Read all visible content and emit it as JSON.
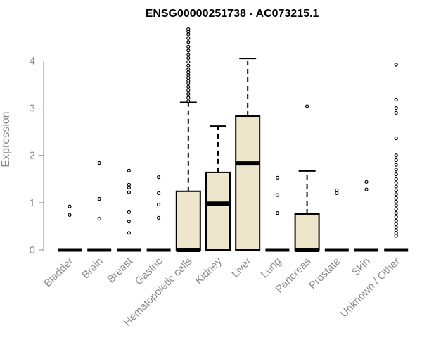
{
  "chart_data": {
    "type": "boxplot",
    "title": "ENSG00000251738 - AC073215.1",
    "xlabel": "",
    "ylabel": "Expression",
    "ylim": [
      0,
      4.7
    ],
    "yticks": [
      0,
      1,
      2,
      3,
      4
    ],
    "grid": false,
    "legend": "none",
    "box_color": "#ede6cb",
    "categories": [
      "Bladder",
      "Brain",
      "Breast",
      "Gastric",
      "Hematopoietic cells",
      "Kidney",
      "Liver",
      "Lung",
      "Pancreas",
      "Prostate",
      "Skin",
      "Unknown / Other"
    ],
    "boxes": [
      {
        "q1": 0,
        "median": 0,
        "q3": 0,
        "whisker_low": 0,
        "whisker_high": 0,
        "outliers": [
          0.74,
          0.92
        ]
      },
      {
        "q1": 0,
        "median": 0,
        "q3": 0,
        "whisker_low": 0,
        "whisker_high": 0,
        "outliers": [
          0.66,
          1.08,
          1.84
        ]
      },
      {
        "q1": 0,
        "median": 0,
        "q3": 0,
        "whisker_low": 0,
        "whisker_high": 0,
        "outliers": [
          0.36,
          0.6,
          0.8,
          1.22,
          1.32,
          1.38,
          1.68
        ]
      },
      {
        "q1": 0,
        "median": 0,
        "q3": 0,
        "whisker_low": 0,
        "whisker_high": 0,
        "outliers": [
          0.68,
          0.96,
          1.2,
          1.54
        ]
      },
      {
        "q1": 0,
        "median": 0,
        "q3": 1.24,
        "whisker_low": 0,
        "whisker_high": 3.12,
        "outliers": [
          3.15,
          3.22,
          3.3,
          3.38,
          3.45,
          3.52,
          3.58,
          3.64,
          3.7,
          3.76,
          3.82,
          3.9,
          3.98,
          4.06,
          4.14,
          4.22,
          4.3,
          4.4,
          4.48,
          4.56,
          4.62,
          4.67
        ]
      },
      {
        "q1": 0,
        "median": 0.98,
        "q3": 1.64,
        "whisker_low": 0,
        "whisker_high": 2.62,
        "outliers": []
      },
      {
        "q1": 0,
        "median": 1.83,
        "q3": 2.83,
        "whisker_low": 0,
        "whisker_high": 4.05,
        "outliers": []
      },
      {
        "q1": 0,
        "median": 0,
        "q3": 0,
        "whisker_low": 0,
        "whisker_high": 0,
        "outliers": [
          0.78,
          1.16,
          1.53
        ]
      },
      {
        "q1": 0,
        "median": 0,
        "q3": 0.76,
        "whisker_low": 0,
        "whisker_high": 1.67,
        "outliers": [
          3.04
        ]
      },
      {
        "q1": 0,
        "median": 0,
        "q3": 0,
        "whisker_low": 0,
        "whisker_high": 0,
        "outliers": [
          1.2,
          1.26
        ]
      },
      {
        "q1": 0,
        "median": 0,
        "q3": 0,
        "whisker_low": 0,
        "whisker_high": 0,
        "outliers": [
          1.28,
          1.44
        ]
      },
      {
        "q1": 0,
        "median": 0,
        "q3": 0,
        "whisker_low": 0,
        "whisker_high": 0,
        "outliers": [
          0.3,
          0.36,
          0.42,
          0.48,
          0.55,
          0.62,
          0.7,
          0.78,
          0.86,
          0.94,
          1.02,
          1.1,
          1.18,
          1.26,
          1.34,
          1.42,
          1.5,
          1.6,
          1.7,
          1.8,
          1.9,
          2.0,
          2.36,
          2.9,
          3.0,
          3.18,
          3.92
        ]
      }
    ]
  }
}
